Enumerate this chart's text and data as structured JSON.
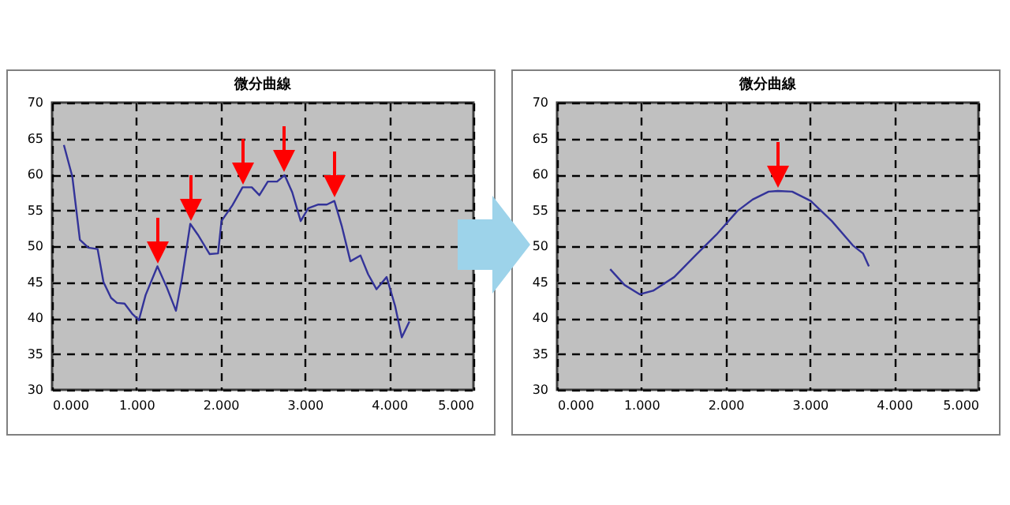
{
  "chart_data": [
    {
      "type": "line",
      "title": "微分曲線",
      "color": "#333399",
      "x": [
        0.14,
        0.24,
        0.33,
        0.43,
        0.54,
        0.61,
        0.7,
        0.77,
        0.86,
        0.95,
        1.03,
        1.11,
        1.25,
        1.36,
        1.47,
        1.54,
        1.64,
        1.73,
        1.87,
        1.97,
        2.01,
        2.14,
        2.26,
        2.37,
        2.46,
        2.56,
        2.67,
        2.76,
        2.85,
        2.95,
        3.04,
        3.16,
        3.26,
        3.35,
        3.44,
        3.54,
        3.66,
        3.75,
        3.85,
        3.97,
        4.07,
        4.15,
        4.24
      ],
      "values": [
        64.1,
        59.7,
        50.9,
        49.8,
        49.6,
        45.0,
        42.8,
        42.1,
        42.0,
        40.6,
        39.7,
        43.2,
        47.2,
        44.3,
        41.0,
        45.4,
        53.1,
        51.6,
        48.9,
        49.0,
        53.5,
        55.7,
        58.2,
        58.2,
        57.1,
        59.0,
        59.0,
        59.9,
        57.5,
        53.5,
        55.3,
        55.8,
        55.8,
        56.3,
        52.7,
        47.9,
        48.7,
        46.1,
        44.0,
        45.7,
        41.7,
        37.3,
        39.5
      ],
      "xlim": [
        0,
        5
      ],
      "xticks": [
        {
          "value": 0,
          "label": "0.000"
        },
        {
          "value": 1,
          "label": "1.000"
        },
        {
          "value": 2,
          "label": "2.000"
        },
        {
          "value": 3,
          "label": "3.000"
        },
        {
          "value": 4,
          "label": "4.000"
        },
        {
          "value": 5,
          "label": "5.000"
        }
      ],
      "ylim": [
        30,
        70
      ],
      "yticks": [
        30,
        35,
        40,
        45,
        50,
        55,
        60,
        65,
        70
      ],
      "grid": true
    },
    {
      "type": "line",
      "title": "微分曲線",
      "color": "#333399",
      "x": [
        0.63,
        0.8,
        0.98,
        1.14,
        1.39,
        1.64,
        1.89,
        2.14,
        2.32,
        2.51,
        2.62,
        2.79,
        3.01,
        3.26,
        3.51,
        3.63,
        3.7
      ],
      "values": [
        46.8,
        44.6,
        43.3,
        43.8,
        45.7,
        48.7,
        51.6,
        54.9,
        56.5,
        57.6,
        57.7,
        57.6,
        56.3,
        53.5,
        50.1,
        49.0,
        47.2
      ],
      "xlim": [
        0,
        5
      ],
      "xticks": [
        {
          "value": 0,
          "label": "0.000"
        },
        {
          "value": 1,
          "label": "1.000"
        },
        {
          "value": 2,
          "label": "2.000"
        },
        {
          "value": 3,
          "label": "3.000"
        },
        {
          "value": 4,
          "label": "4.000"
        },
        {
          "value": 5,
          "label": "5.000"
        }
      ],
      "ylim": [
        30,
        70
      ],
      "yticks": [
        30,
        35,
        40,
        45,
        50,
        55,
        60,
        65,
        70
      ],
      "grid": true
    }
  ]
}
